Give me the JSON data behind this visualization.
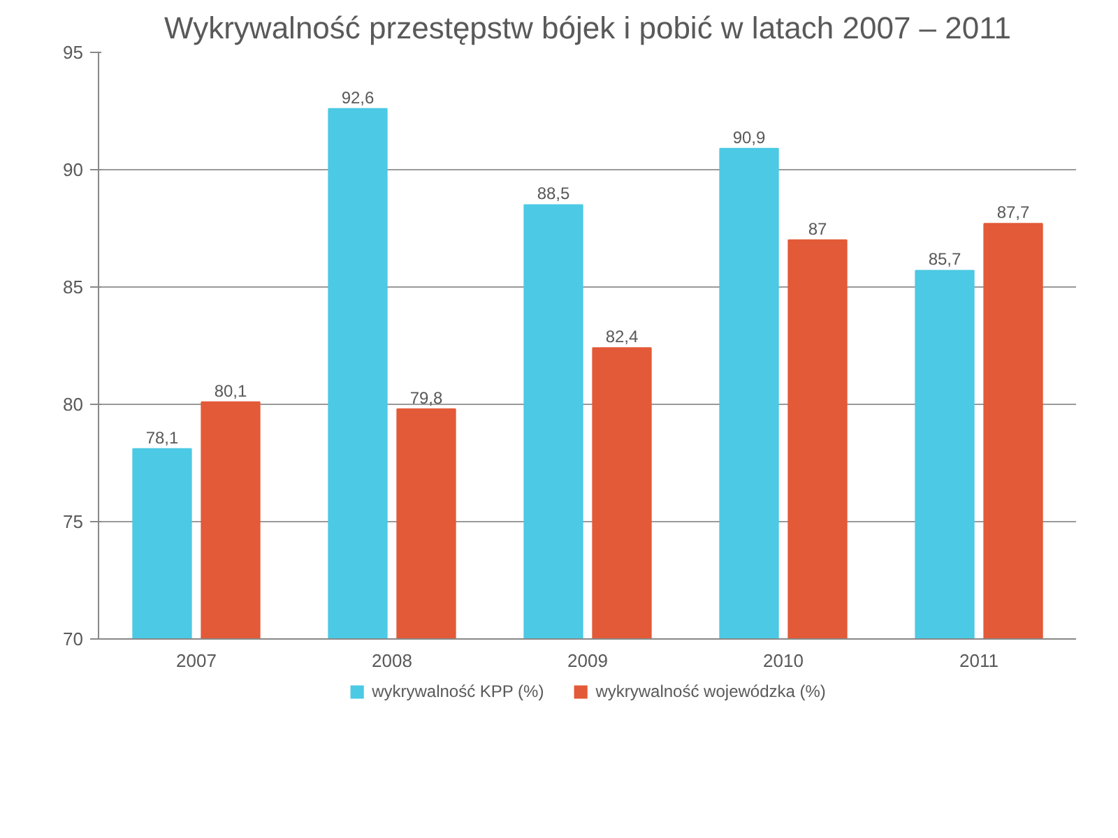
{
  "chart_data": {
    "type": "bar",
    "title": "Wykrywalność przestępstw bójek i pobić w latach 2007 – 2011",
    "categories": [
      "2007",
      "2008",
      "2009",
      "2010",
      "2011"
    ],
    "series": [
      {
        "name": "wykrywalność KPP (%)",
        "color": "#4cc9e4",
        "values": [
          78.1,
          92.6,
          88.5,
          90.9,
          85.7
        ],
        "value_labels": [
          "78,1",
          "92,6",
          "88,5",
          "90,9",
          "85,7"
        ]
      },
      {
        "name": "wykrywalność wojewódzka (%)",
        "color": "#e35a38",
        "values": [
          80.1,
          79.8,
          82.4,
          87,
          87.7
        ],
        "value_labels": [
          "80,1",
          "79,8",
          "82,4",
          "87",
          "87,7"
        ]
      }
    ],
    "ylim": [
      70,
      95
    ],
    "yticks": [
      70,
      75,
      80,
      85,
      90,
      95
    ],
    "grid": "y",
    "legend": "bottom"
  }
}
